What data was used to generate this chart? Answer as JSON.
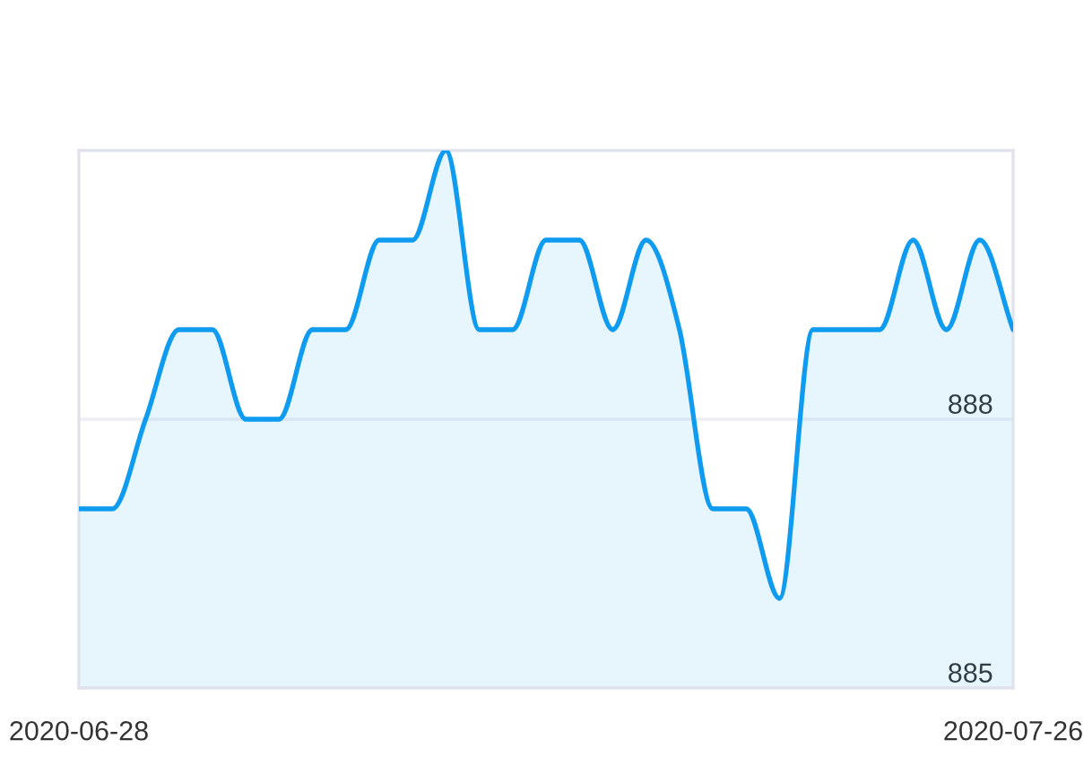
{
  "chart_data": {
    "type": "area",
    "x": [
      "2020-06-28",
      "2020-06-29",
      "2020-06-30",
      "2020-07-01",
      "2020-07-02",
      "2020-07-03",
      "2020-07-04",
      "2020-07-05",
      "2020-07-06",
      "2020-07-07",
      "2020-07-08",
      "2020-07-09",
      "2020-07-10",
      "2020-07-11",
      "2020-07-12",
      "2020-07-13",
      "2020-07-14",
      "2020-07-15",
      "2020-07-16",
      "2020-07-17",
      "2020-07-18",
      "2020-07-19",
      "2020-07-20",
      "2020-07-21",
      "2020-07-22",
      "2020-07-23",
      "2020-07-24",
      "2020-07-25",
      "2020-07-26"
    ],
    "series": [
      {
        "color": "#0f9cf0",
        "values": [
          887,
          887,
          888,
          889,
          889,
          888,
          888,
          889,
          889,
          890,
          890,
          891,
          889,
          889,
          890,
          890,
          889,
          890,
          889,
          887,
          887,
          886,
          889,
          889,
          889,
          890,
          889,
          890,
          889
        ]
      }
    ],
    "xlim": [
      "2020-06-28",
      "2020-07-26"
    ],
    "xticks": [
      "2020-06-28",
      "2020-07-26"
    ],
    "ylim": [
      885,
      891
    ],
    "yticks": [
      885,
      888
    ],
    "grid": "y",
    "line_style": "solid"
  }
}
